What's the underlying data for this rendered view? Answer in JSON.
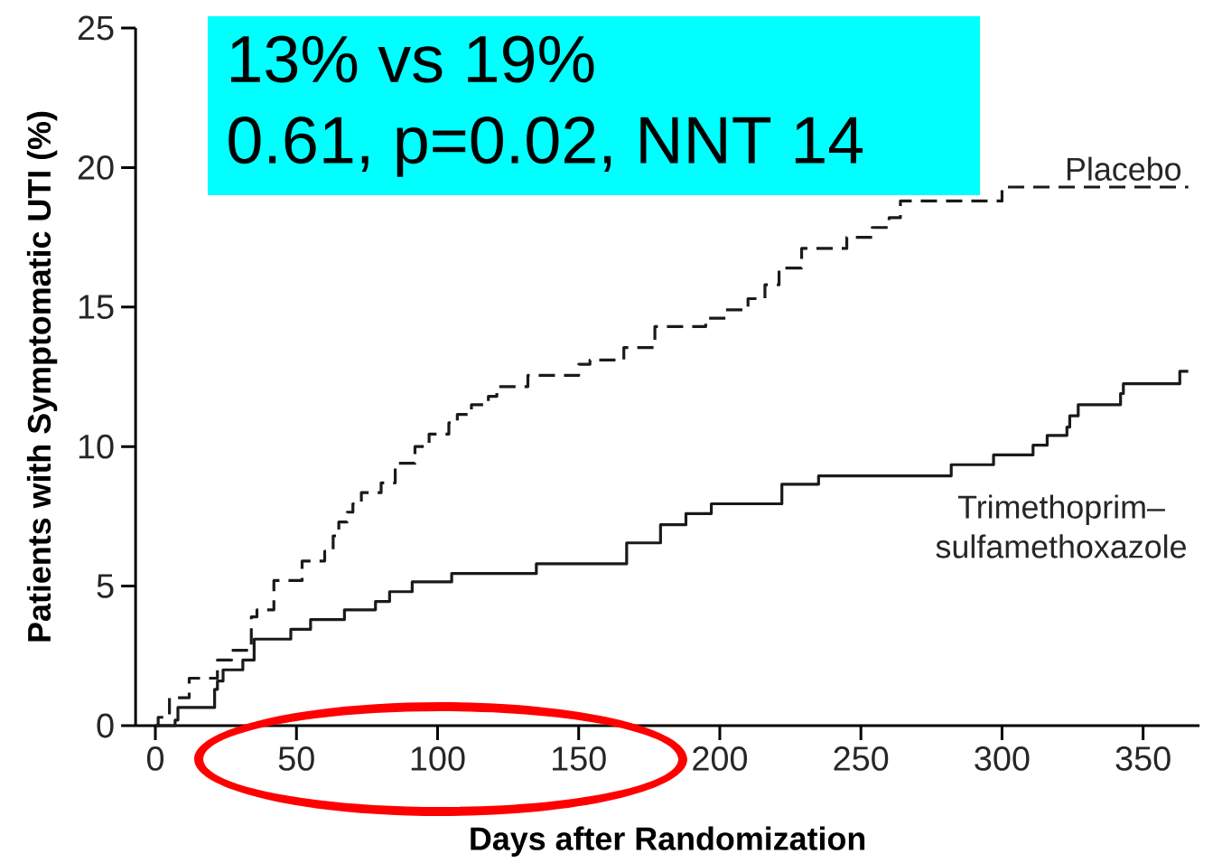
{
  "chart_data": {
    "type": "step",
    "xlabel": "Days after Randomization",
    "ylabel": "Patients with Symptomatic UTI (%)",
    "annotations": [
      "13% vs 19%",
      "0.61, p=0.02, NNT 14"
    ],
    "xlim": [
      -7,
      370
    ],
    "ylim": [
      0,
      25
    ],
    "xticks": [
      0,
      50,
      100,
      150,
      200,
      250,
      300,
      350
    ],
    "yticks": [
      0,
      5,
      10,
      15,
      20,
      25
    ],
    "series": [
      {
        "name": "Trimethoprim–sulfamethoxazole",
        "color": "#1a1a1a",
        "line_style": "solid",
        "x": [
          0,
          7,
          8,
          21,
          22,
          24,
          31,
          35,
          48,
          55,
          67,
          78,
          83,
          91,
          105,
          135,
          167,
          179,
          188,
          197,
          222,
          235,
          282,
          297,
          311,
          316,
          323,
          324,
          327,
          342,
          343,
          363,
          366
        ],
        "values": [
          0,
          0.2,
          0.65,
          1.3,
          1.6,
          2.0,
          2.35,
          3.1,
          3.45,
          3.8,
          4.15,
          4.45,
          4.8,
          5.15,
          5.45,
          5.8,
          6.55,
          7.2,
          7.6,
          7.95,
          8.65,
          8.95,
          9.35,
          9.7,
          10.05,
          10.4,
          10.7,
          11.1,
          11.5,
          11.9,
          12.25,
          12.7,
          12.7
        ]
      },
      {
        "name": "Placebo",
        "color": "#1a1a1a",
        "line_style": "dashed",
        "x": [
          0,
          1,
          5,
          12,
          22,
          27,
          34,
          36,
          42,
          52,
          60,
          63,
          65,
          68,
          70,
          73,
          80,
          85,
          92,
          97,
          104,
          107,
          112,
          118,
          121,
          132,
          150,
          154,
          166,
          177,
          195,
          202,
          210,
          216,
          221,
          229,
          245,
          254,
          260,
          264,
          300,
          366
        ],
        "values": [
          0,
          0.3,
          1.0,
          1.7,
          2.35,
          2.7,
          3.9,
          4.15,
          5.2,
          5.9,
          6.25,
          6.8,
          7.3,
          7.65,
          7.95,
          8.35,
          8.7,
          9.4,
          10.0,
          10.45,
          10.85,
          11.15,
          11.5,
          11.8,
          12.15,
          12.55,
          12.95,
          13.1,
          13.55,
          14.3,
          14.6,
          14.9,
          15.3,
          15.8,
          16.4,
          17.1,
          17.5,
          17.85,
          18.2,
          18.8,
          19.3,
          19.3
        ]
      }
    ]
  }
}
